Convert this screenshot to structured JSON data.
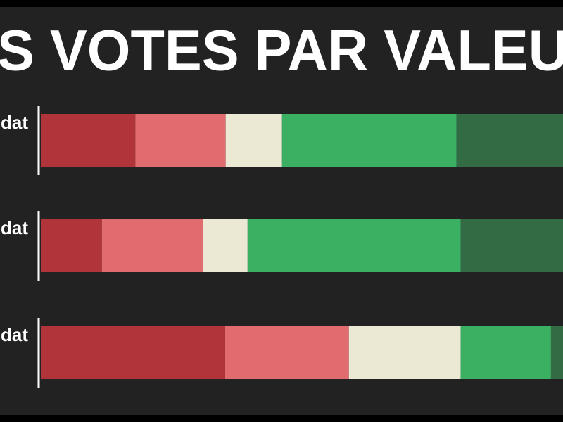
{
  "chart_data": {
    "type": "stacked-bar-horizontal",
    "orientation": "horizontal",
    "title": "S VOTES PAR VALEU",
    "categories": [
      "dat",
      "dat",
      "dat"
    ],
    "series": [
      {
        "color": "#b0343a",
        "values": [
          18.1,
          11.7,
          35.3
        ]
      },
      {
        "color": "#e06c6f",
        "values": [
          17.3,
          19.4,
          23.7
        ]
      },
      {
        "color": "#ebe8d4",
        "values": [
          10.8,
          8.5,
          21.4
        ]
      },
      {
        "color": "#3bb063",
        "values": [
          33.4,
          40.8,
          17.3
        ]
      },
      {
        "color": "#336b45",
        "values": [
          20.4,
          19.6,
          2.3
        ]
      }
    ],
    "xlim": [
      0,
      100
    ]
  }
}
